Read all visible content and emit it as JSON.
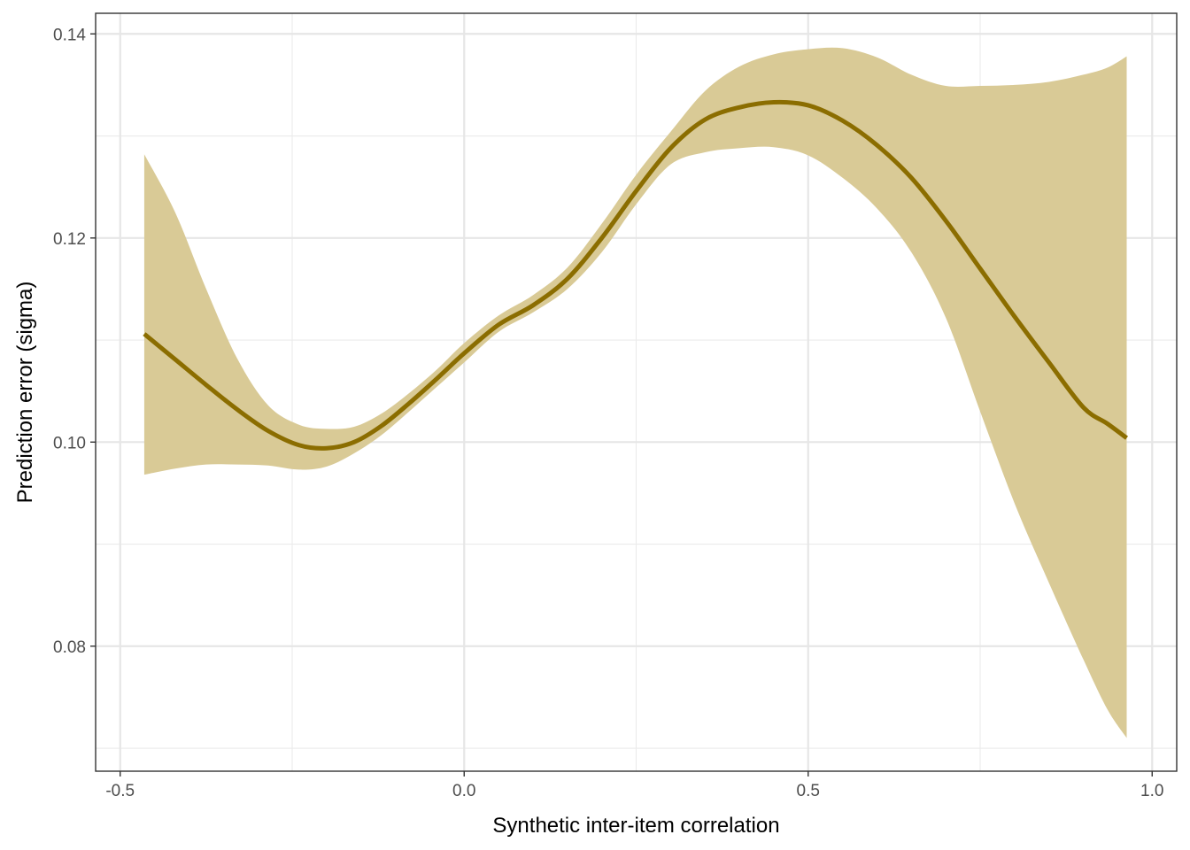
{
  "chart_data": {
    "type": "line",
    "title": "",
    "xlabel": "Synthetic inter-item correlation",
    "ylabel": "Prediction error (sigma)",
    "xlim": [
      -0.5357,
      1.0357
    ],
    "ylim": [
      0.06775,
      0.14202
    ],
    "x_ticks": [
      -0.5,
      0.0,
      0.5,
      1.0
    ],
    "x_tick_labels": [
      "-0.5",
      "0.0",
      "0.5",
      "1.0"
    ],
    "y_ticks": [
      0.08,
      0.1,
      0.12,
      0.14
    ],
    "y_tick_labels": [
      "0.08",
      "0.10",
      "0.12",
      "0.14"
    ],
    "grid": true,
    "legend": "none",
    "colors": {
      "line": "#8b6d00",
      "ribbon": "#d9ca96",
      "grid": "#ebebeb",
      "border": "#333333"
    },
    "series": [
      {
        "x": [
          -0.465,
          -0.42,
          -0.375,
          -0.33,
          -0.285,
          -0.24,
          -0.2,
          -0.16,
          -0.12,
          -0.08,
          -0.04,
          0.0,
          0.05,
          0.1,
          0.15,
          0.2,
          0.25,
          0.3,
          0.35,
          0.4,
          0.45,
          0.5,
          0.55,
          0.6,
          0.65,
          0.7,
          0.75,
          0.8,
          0.85,
          0.9,
          0.935,
          0.963
        ],
        "y": [
          0.1106,
          0.1081,
          0.1056,
          0.1032,
          0.1011,
          0.0997,
          0.0994,
          0.1,
          0.1016,
          0.1038,
          0.1062,
          0.1087,
          0.1115,
          0.1134,
          0.116,
          0.12,
          0.1246,
          0.1288,
          0.1316,
          0.1328,
          0.1333,
          0.133,
          0.1315,
          0.1291,
          0.1259,
          0.1217,
          0.117,
          0.1123,
          0.1078,
          0.1034,
          0.1018,
          0.1004
        ],
        "lower": [
          0.0968,
          0.0974,
          0.0978,
          0.0978,
          0.0977,
          0.0973,
          0.0976,
          0.0989,
          0.1007,
          0.103,
          0.1054,
          0.1078,
          0.1108,
          0.1127,
          0.115,
          0.1186,
          0.1233,
          0.1272,
          0.1284,
          0.1288,
          0.1289,
          0.1281,
          0.1259,
          0.1229,
          0.1186,
          0.1122,
          0.103,
          0.094,
          0.0862,
          0.0787,
          0.0738,
          0.071
        ],
        "upper": [
          0.1282,
          0.1225,
          0.115,
          0.1082,
          0.1036,
          0.1017,
          0.1013,
          0.1015,
          0.1028,
          0.1048,
          0.1071,
          0.1097,
          0.1124,
          0.1144,
          0.1171,
          0.1214,
          0.1262,
          0.1304,
          0.1344,
          0.1368,
          0.138,
          0.1385,
          0.1386,
          0.1377,
          0.136,
          0.1349,
          0.1349,
          0.135,
          0.1353,
          0.136,
          0.1367,
          0.1378
        ]
      }
    ]
  }
}
